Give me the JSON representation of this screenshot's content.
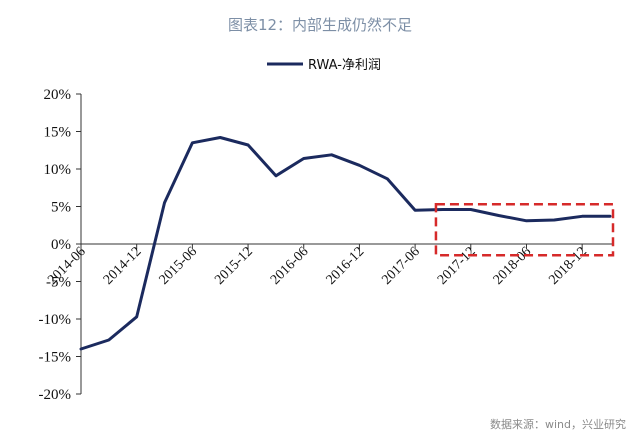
{
  "title": "图表12：内部生成仍然不足",
  "source": "数据来源：wind，兴业研究",
  "colors": {
    "line": "#1b2a5e",
    "highlight": "#d62a2a",
    "title": "#7d8fa6",
    "axis": "#333333"
  },
  "chart_data": {
    "type": "line",
    "title": "图表12：内部生成仍然不足",
    "xlabel": "",
    "ylabel": "",
    "ylim": [
      -20,
      20
    ],
    "yticks": [
      "20%",
      "15%",
      "10%",
      "5%",
      "0%",
      "-5%",
      "-10%",
      "-15%",
      "-20%"
    ],
    "ytick_values": [
      20,
      15,
      10,
      5,
      0,
      -5,
      -10,
      -15,
      -20
    ],
    "xtick_labels": [
      "2014-06",
      "2014-12",
      "2015-06",
      "2015-12",
      "2016-06",
      "2016-12",
      "2017-06",
      "2017-12",
      "2018-06",
      "2018-12"
    ],
    "legend": {
      "position": "top-center"
    },
    "grid": false,
    "highlight_region": {
      "x_from": "2017-09",
      "x_to": "2019-03",
      "y_from": -1.5,
      "y_to": 5.3,
      "style": "dashed"
    },
    "series": [
      {
        "name": "RWA-净利润",
        "x": [
          "2014-06",
          "2014-09",
          "2014-12",
          "2015-03",
          "2015-06",
          "2015-09",
          "2015-12",
          "2016-03",
          "2016-06",
          "2016-09",
          "2016-12",
          "2017-03",
          "2017-06",
          "2017-09",
          "2017-12",
          "2018-03",
          "2018-06",
          "2018-09",
          "2018-12",
          "2019-03"
        ],
        "values": [
          -14.0,
          -12.8,
          -9.7,
          5.5,
          13.5,
          14.2,
          13.2,
          9.1,
          11.4,
          11.9,
          10.5,
          8.7,
          4.5,
          4.6,
          4.6,
          3.8,
          3.1,
          3.2,
          3.7,
          3.7
        ]
      }
    ]
  }
}
